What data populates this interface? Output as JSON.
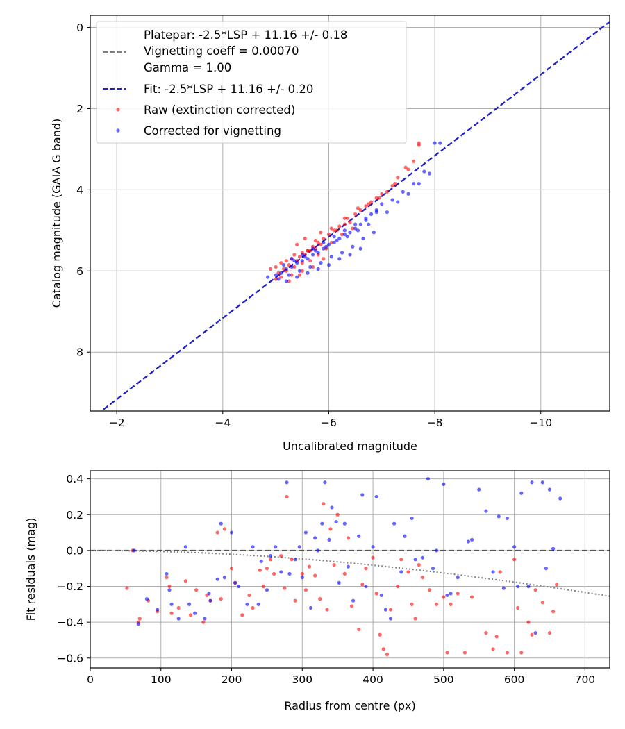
{
  "chart_data": [
    {
      "type": "scatter",
      "xlabel": "Uncalibrated magnitude",
      "ylabel": "Catalog magnitude (GAIA G band)",
      "xlim": [
        -1.5,
        -11.3
      ],
      "ylim": [
        9.45,
        -0.3
      ],
      "x_inverted": true,
      "y_inverted": true,
      "xticks": [
        -2,
        -4,
        -6,
        -8,
        -10
      ],
      "xtick_labels": [
        "−2",
        "−4",
        "−6",
        "−8",
        "−10"
      ],
      "yticks": [
        0,
        2,
        4,
        6,
        8
      ],
      "ytick_labels": [
        "0",
        "2",
        "4",
        "6",
        "8"
      ],
      "grid": true,
      "legend_position": "top-left",
      "legend": [
        "Platepar: -2.5*LSP + 11.16 +/- 0.18",
        "Vignetting coeff = 0.00070",
        "Gamma = 1.00",
        "Fit: -2.5*LSP + 11.16 +/- 0.20",
        "Raw (extinction corrected)",
        "Corrected for vignetting"
      ],
      "colors": {
        "raw": "#ff0000",
        "corrected": "#0000ff",
        "fit": "#2222cc",
        "platepar": "#808080"
      },
      "lines": [
        {
          "name": "Platepar",
          "slope": -2.5,
          "intercept": 11.16,
          "style": "dashed",
          "color": "#808080"
        },
        {
          "name": "Fit",
          "slope": -2.5,
          "intercept": 11.16,
          "style": "dashed",
          "color": "#2222cc"
        }
      ],
      "series": [
        {
          "name": "Raw (extinction corrected)",
          "x": [
            -5.0,
            -5.1,
            -5.2,
            -5.15,
            -5.3,
            -5.25,
            -5.35,
            -5.4,
            -5.5,
            -5.45,
            -5.6,
            -5.55,
            -5.7,
            -5.65,
            -5.8,
            -5.75,
            -5.9,
            -5.85,
            -6.0,
            -6.1,
            -6.2,
            -6.3,
            -6.4,
            -6.5,
            -6.6,
            -6.7,
            -6.8,
            -6.9,
            -7.0,
            -7.1,
            -7.2,
            -7.3,
            -7.5,
            -7.6,
            -7.7,
            -5.05,
            -5.2,
            -5.35,
            -5.5,
            -5.65,
            -5.8,
            -5.95,
            -6.05,
            -6.25,
            -6.45,
            -5.1,
            -5.3,
            -5.5,
            -5.7,
            -5.9,
            -4.9,
            -5.0,
            -5.25,
            -5.45,
            -5.6,
            -5.75,
            -6.15,
            -6.35,
            -6.55,
            -6.75,
            -6.95,
            -7.25,
            -7.45,
            -7.7,
            -5.4,
            -5.55,
            -5.85,
            -6.05,
            -6.3
          ],
          "y": [
            5.9,
            5.8,
            5.75,
            5.95,
            5.7,
            5.85,
            5.6,
            5.75,
            5.55,
            5.65,
            5.5,
            5.6,
            5.4,
            5.5,
            5.3,
            5.45,
            5.2,
            5.35,
            5.1,
            5.0,
            4.9,
            4.85,
            4.8,
            4.6,
            4.5,
            4.4,
            4.3,
            4.2,
            4.1,
            4.05,
            3.9,
            3.7,
            3.5,
            3.3,
            2.85,
            6.05,
            6.0,
            5.9,
            5.8,
            5.75,
            5.6,
            5.45,
            5.3,
            5.1,
            4.95,
            6.15,
            6.1,
            6.0,
            5.9,
            5.7,
            5.95,
            6.2,
            6.25,
            6.1,
            5.5,
            5.25,
            5.0,
            4.7,
            4.45,
            4.35,
            4.2,
            3.85,
            3.45,
            2.9,
            5.35,
            5.2,
            5.05,
            4.95,
            4.7
          ]
        },
        {
          "name": "Corrected for vignetting",
          "x": [
            -4.85,
            -5.0,
            -5.1,
            -5.2,
            -5.3,
            -5.4,
            -5.5,
            -5.6,
            -5.7,
            -5.8,
            -5.9,
            -6.0,
            -6.1,
            -6.2,
            -6.3,
            -6.4,
            -6.5,
            -6.6,
            -6.7,
            -6.8,
            -6.9,
            -7.0,
            -7.2,
            -7.4,
            -7.6,
            -7.8,
            -8.0,
            -8.1,
            -5.05,
            -5.25,
            -5.45,
            -5.65,
            -5.85,
            -6.05,
            -6.25,
            -6.45,
            -6.65,
            -6.85,
            -5.15,
            -5.35,
            -5.55,
            -5.75,
            -5.95,
            -6.15,
            -6.35,
            -6.55,
            -6.75,
            -5.2,
            -5.4,
            -5.6,
            -5.8,
            -6.0,
            -6.2,
            -6.4,
            -6.6,
            -7.1,
            -7.3,
            -7.5,
            -7.7,
            -7.9,
            -5.3,
            -5.5,
            -5.7,
            -5.9,
            -6.1,
            -6.3,
            -6.5,
            -6.7,
            -6.9
          ],
          "y": [
            6.15,
            6.1,
            6.05,
            5.95,
            5.9,
            5.8,
            5.75,
            5.7,
            5.6,
            5.55,
            5.45,
            5.35,
            5.3,
            5.2,
            5.1,
            5.05,
            4.95,
            4.85,
            4.75,
            4.6,
            4.5,
            4.35,
            4.25,
            4.05,
            3.85,
            3.55,
            2.85,
            2.85,
            6.2,
            6.1,
            6.0,
            5.9,
            5.8,
            5.65,
            5.55,
            5.4,
            5.2,
            5.05,
            5.85,
            5.75,
            5.65,
            5.5,
            5.4,
            5.25,
            5.15,
            5.0,
            4.85,
            6.25,
            6.15,
            6.05,
            5.95,
            5.85,
            5.7,
            5.6,
            5.45,
            4.55,
            4.3,
            4.1,
            3.85,
            3.6,
            5.7,
            5.6,
            5.45,
            5.3,
            5.15,
            5.0,
            4.85,
            4.7,
            4.55
          ]
        }
      ]
    },
    {
      "type": "scatter",
      "xlabel": "Radius from centre (px)",
      "ylabel": "Fit residuals (mag)",
      "xlim": [
        0,
        735
      ],
      "ylim": [
        -0.655,
        0.445
      ],
      "xticks": [
        0,
        100,
        200,
        300,
        400,
        500,
        600,
        700
      ],
      "xtick_labels": [
        "0",
        "100",
        "200",
        "300",
        "400",
        "500",
        "600",
        "700"
      ],
      "yticks": [
        -0.6,
        -0.4,
        -0.2,
        0.0,
        0.2,
        0.4
      ],
      "ytick_labels": [
        "−0.6",
        "−0.4",
        "−0.2",
        "0.0",
        "0.2",
        "0.4"
      ],
      "grid": true,
      "colors": {
        "raw": "#ff0000",
        "corrected": "#0000ff",
        "zero": "#555555",
        "vignetting": "#808080"
      },
      "lines": [
        {
          "name": "zero",
          "y": 0.0,
          "style": "dashed"
        },
        {
          "name": "vignetting",
          "coeff": 0.0007,
          "style": "dotted"
        }
      ],
      "series": [
        {
          "name": "Raw (extinction corrected)",
          "x": [
            52,
            60,
            68,
            70,
            82,
            95,
            108,
            112,
            115,
            125,
            135,
            142,
            150,
            160,
            165,
            170,
            180,
            185,
            190,
            200,
            205,
            215,
            225,
            230,
            240,
            245,
            250,
            255,
            260,
            270,
            275,
            278,
            285,
            290,
            300,
            305,
            310,
            318,
            325,
            330,
            335,
            340,
            345,
            350,
            360,
            365,
            370,
            380,
            385,
            390,
            400,
            405,
            410,
            415,
            420,
            425,
            435,
            440,
            450,
            455,
            460,
            465,
            470,
            480,
            490,
            500,
            505,
            510,
            520,
            530,
            540,
            560,
            570,
            575,
            580,
            590,
            600,
            605,
            610,
            620,
            625,
            630,
            640,
            650,
            655,
            660
          ],
          "y": [
            -0.21,
            0.0,
            -0.4,
            -0.38,
            -0.28,
            -0.34,
            -0.15,
            -0.2,
            -0.35,
            -0.32,
            -0.17,
            -0.36,
            -0.22,
            -0.4,
            -0.25,
            -0.28,
            0.1,
            -0.27,
            0.12,
            -0.1,
            -0.18,
            -0.36,
            -0.25,
            -0.32,
            -0.11,
            -0.2,
            -0.1,
            -0.05,
            -0.13,
            -0.03,
            -0.21,
            0.3,
            -0.05,
            -0.28,
            -0.13,
            -0.22,
            -0.09,
            -0.14,
            -0.27,
            0.26,
            -0.33,
            0.12,
            -0.08,
            0.2,
            -0.13,
            0.07,
            -0.31,
            -0.44,
            -0.19,
            -0.1,
            -0.04,
            -0.24,
            -0.47,
            -0.55,
            -0.58,
            -0.33,
            -0.2,
            -0.05,
            -0.12,
            -0.3,
            -0.38,
            -0.08,
            -0.15,
            -0.22,
            -0.3,
            -0.26,
            -0.57,
            -0.3,
            -0.24,
            -0.57,
            -0.26,
            -0.46,
            -0.55,
            -0.48,
            -0.12,
            -0.57,
            -0.05,
            -0.32,
            -0.57,
            -0.4,
            -0.47,
            -0.22,
            -0.29,
            -0.46,
            -0.34,
            -0.19
          ]
        },
        {
          "name": "Corrected for vignetting",
          "x": [
            62,
            68,
            80,
            95,
            108,
            112,
            115,
            125,
            135,
            140,
            148,
            162,
            168,
            170,
            180,
            185,
            190,
            200,
            205,
            210,
            222,
            230,
            238,
            242,
            250,
            255,
            262,
            270,
            278,
            282,
            290,
            296,
            300,
            305,
            312,
            318,
            322,
            328,
            332,
            338,
            342,
            348,
            352,
            360,
            365,
            372,
            380,
            385,
            390,
            400,
            405,
            412,
            418,
            425,
            430,
            440,
            445,
            455,
            460,
            470,
            478,
            485,
            490,
            500,
            505,
            510,
            520,
            535,
            540,
            550,
            560,
            570,
            578,
            585,
            590,
            600,
            605,
            610,
            620,
            625,
            630,
            640,
            645,
            650,
            655,
            665
          ],
          "y": [
            0.0,
            -0.41,
            -0.27,
            -0.33,
            -0.13,
            -0.22,
            -0.3,
            -0.38,
            0.02,
            -0.3,
            -0.35,
            -0.38,
            -0.24,
            -0.28,
            -0.16,
            0.15,
            -0.15,
            0.1,
            -0.18,
            -0.2,
            -0.3,
            0.02,
            -0.3,
            -0.06,
            -0.22,
            -0.03,
            0.02,
            -0.12,
            0.38,
            -0.13,
            -0.05,
            0.02,
            -0.15,
            0.1,
            -0.32,
            0.07,
            0.0,
            0.15,
            0.38,
            0.06,
            0.24,
            0.16,
            -0.18,
            0.15,
            -0.09,
            -0.28,
            0.08,
            0.31,
            -0.2,
            0.02,
            0.3,
            -0.25,
            -0.33,
            -0.38,
            0.15,
            -0.12,
            0.08,
            0.18,
            -0.05,
            -0.04,
            0.4,
            -0.1,
            0.0,
            0.37,
            -0.25,
            -0.24,
            -0.15,
            0.05,
            0.06,
            0.34,
            0.22,
            -0.12,
            0.19,
            -0.21,
            0.18,
            0.02,
            -0.2,
            0.32,
            -0.2,
            0.38,
            -0.46,
            0.38,
            -0.1,
            0.34,
            0.01,
            0.29
          ]
        }
      ]
    }
  ]
}
